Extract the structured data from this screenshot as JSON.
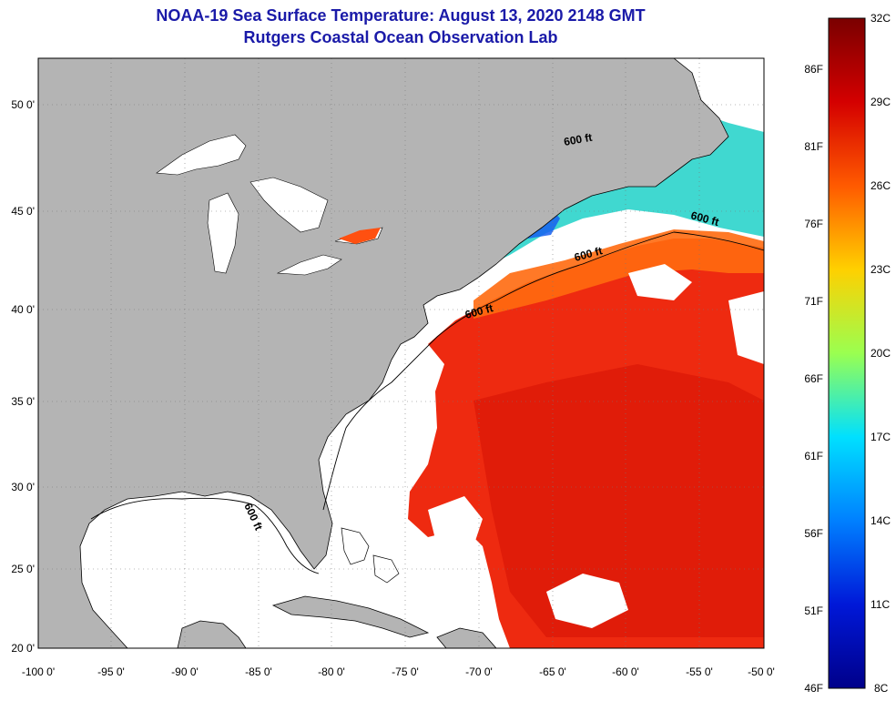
{
  "title_line1": "NOAA-19 Sea Surface Temperature:  August 13, 2020 2148 GMT",
  "title_line2": "Rutgers Coastal Ocean Observation Lab",
  "lat_labels": [
    "50 0'",
    "45 0'",
    "40 0'",
    "35 0'",
    "30 0'",
    "25 0'",
    "20 0'"
  ],
  "lon_labels": [
    "-100 0'",
    "-95 0'",
    "-90 0'",
    "-85 0'",
    "-80 0'",
    "-75 0'",
    "-70 0'",
    "-65 0'",
    "-60 0'",
    "-55 0'",
    "-50 0'"
  ],
  "contour_labels": [
    "600 ft",
    "600 ft",
    "600 ft",
    "600 ft",
    "600 ft"
  ],
  "colorbar": {
    "celsius": [
      "32C",
      "29C",
      "26C",
      "23C",
      "20C",
      "17C",
      "14C",
      "11C",
      "8C"
    ],
    "fahrenheit": [
      "86F",
      "81F",
      "76F",
      "71F",
      "66F",
      "61F",
      "56F",
      "51F",
      "46F"
    ],
    "colors": [
      "#7a0000",
      "#d40000",
      "#ff5a00",
      "#ffd000",
      "#9aff50",
      "#00e0ff",
      "#0080ff",
      "#0018d8",
      "#00008a"
    ]
  },
  "colors": {
    "land": "#b4b4b4",
    "ocean_no_data": "#ffffff",
    "title": "#1a1aa8"
  }
}
